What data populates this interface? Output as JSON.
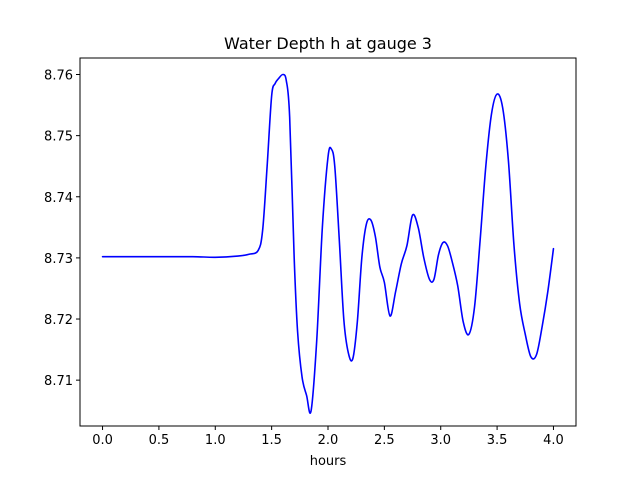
{
  "chart_data": {
    "type": "line",
    "title": "Water Depth h at gauge 3",
    "xlabel": "hours",
    "ylabel": "",
    "xlim": [
      -0.2,
      4.2
    ],
    "ylim": [
      8.7025,
      8.7627
    ],
    "grid": false,
    "line_color": "#0000ff",
    "x_ticks": [
      {
        "value": 0.0,
        "label": "0.0"
      },
      {
        "value": 0.5,
        "label": "0.5"
      },
      {
        "value": 1.0,
        "label": "1.0"
      },
      {
        "value": 1.5,
        "label": "1.5"
      },
      {
        "value": 2.0,
        "label": "2.0"
      },
      {
        "value": 2.5,
        "label": "2.5"
      },
      {
        "value": 3.0,
        "label": "3.0"
      },
      {
        "value": 3.5,
        "label": "3.5"
      },
      {
        "value": 4.0,
        "label": "4.0"
      }
    ],
    "y_ticks": [
      {
        "value": 8.71,
        "label": "8.71"
      },
      {
        "value": 8.72,
        "label": "8.72"
      },
      {
        "value": 8.73,
        "label": "8.73"
      },
      {
        "value": 8.74,
        "label": "8.74"
      },
      {
        "value": 8.75,
        "label": "8.75"
      },
      {
        "value": 8.76,
        "label": "8.76"
      }
    ],
    "series": [
      {
        "x": [
          0.0,
          0.2,
          0.5,
          0.8,
          1.0,
          1.2,
          1.3,
          1.38,
          1.42,
          1.46,
          1.5,
          1.53,
          1.56,
          1.6,
          1.63,
          1.66,
          1.7,
          1.73,
          1.77,
          1.81,
          1.85,
          1.9,
          1.95,
          2.0,
          2.03,
          2.06,
          2.1,
          2.14,
          2.18,
          2.22,
          2.26,
          2.3,
          2.34,
          2.38,
          2.42,
          2.46,
          2.5,
          2.55,
          2.6,
          2.65,
          2.7,
          2.75,
          2.8,
          2.85,
          2.9,
          2.94,
          2.98,
          3.02,
          3.06,
          3.1,
          3.15,
          3.2,
          3.25,
          3.3,
          3.35,
          3.4,
          3.45,
          3.5,
          3.55,
          3.6,
          3.65,
          3.7,
          3.75,
          3.8,
          3.85,
          3.9,
          3.95,
          4.0
        ],
        "y": [
          8.7302,
          8.7302,
          8.7302,
          8.7302,
          8.7301,
          8.7303,
          8.7306,
          8.7312,
          8.7345,
          8.745,
          8.7565,
          8.7585,
          8.7593,
          8.76,
          8.759,
          8.753,
          8.73,
          8.718,
          8.7105,
          8.7075,
          8.705,
          8.7165,
          8.735,
          8.7465,
          8.7478,
          8.745,
          8.733,
          8.72,
          8.7145,
          8.7135,
          8.7195,
          8.73,
          8.7355,
          8.7362,
          8.7335,
          8.7285,
          8.726,
          8.7205,
          8.7245,
          8.729,
          8.732,
          8.737,
          8.735,
          8.73,
          8.7265,
          8.7265,
          8.7305,
          8.7325,
          8.732,
          8.7295,
          8.7255,
          8.7195,
          8.7175,
          8.722,
          8.733,
          8.745,
          8.7535,
          8.7568,
          8.7545,
          8.746,
          8.732,
          8.7225,
          8.7175,
          8.7138,
          8.7142,
          8.7188,
          8.7245,
          8.7315
        ]
      }
    ]
  }
}
